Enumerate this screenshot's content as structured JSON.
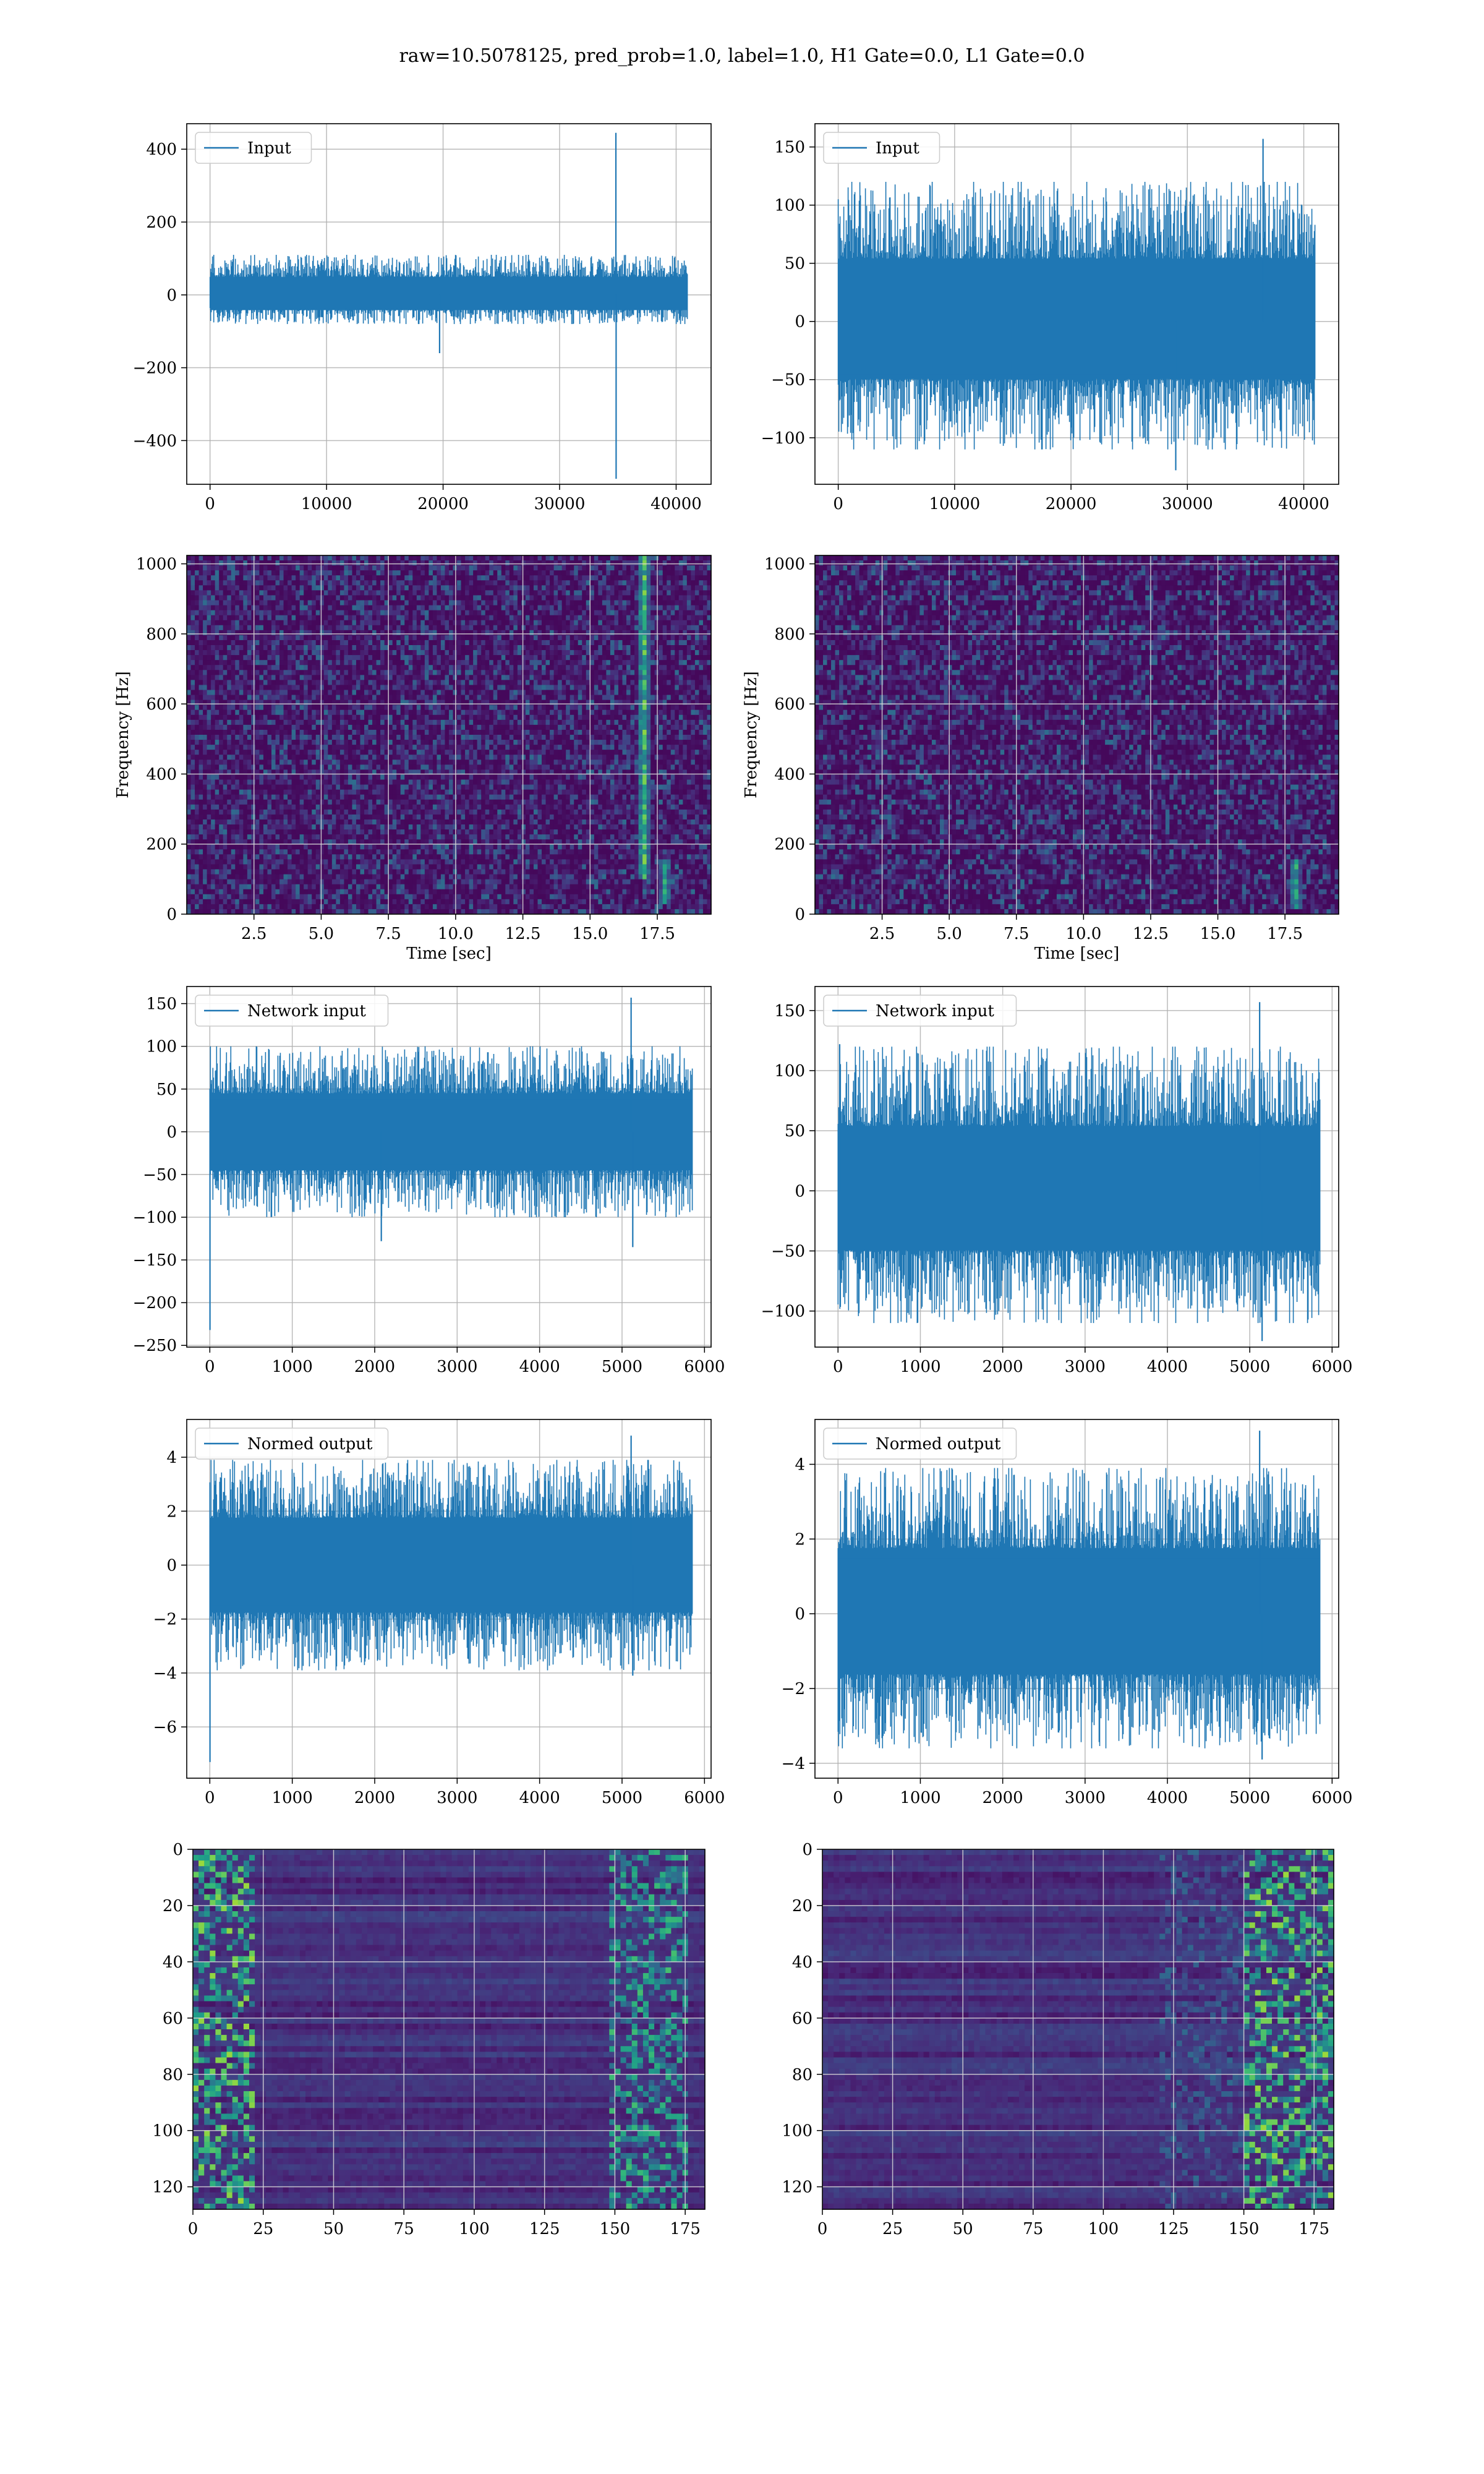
{
  "figure_title": "raw=10.5078125, pred_prob=1.0, label=1.0, H1 Gate=0.0, L1 Gate=0.0",
  "colors": {
    "line": "#1f77b4",
    "grid": "#b0b0b0",
    "viridis_low": "#440154",
    "viridis_high": "#fde725"
  },
  "chart_data": [
    {
      "id": "row1-left",
      "type": "line",
      "legend": "Input",
      "legend_loc": "upper left",
      "xlim": [
        -2000,
        43000
      ],
      "ylim": [
        -520,
        470
      ],
      "xticks": [
        0,
        10000,
        20000,
        30000,
        40000
      ],
      "xtick_labels": [
        "0",
        "10000",
        "20000",
        "30000",
        "40000"
      ],
      "yticks": [
        -400,
        -200,
        0,
        200,
        400
      ],
      "ytick_labels": [
        "−400",
        "−200",
        "0",
        "200",
        "400"
      ],
      "grid": true,
      "n_points": 40960,
      "signal": {
        "x_max": 40960,
        "noise_min": -80,
        "noise_max": 110,
        "spikes": [
          {
            "x": 34830,
            "value": 445
          },
          {
            "x": 34850,
            "value": -505
          },
          {
            "x": 19700,
            "value": -160
          }
        ]
      }
    },
    {
      "id": "row1-right",
      "type": "line",
      "legend": "Input",
      "legend_loc": "upper left",
      "xlim": [
        -2000,
        43000
      ],
      "ylim": [
        -140,
        170
      ],
      "xticks": [
        0,
        10000,
        20000,
        30000,
        40000
      ],
      "xtick_labels": [
        "0",
        "10000",
        "20000",
        "30000",
        "40000"
      ],
      "yticks": [
        -100,
        -50,
        0,
        50,
        100,
        150
      ],
      "ytick_labels": [
        "−100",
        "−50",
        "0",
        "50",
        "100",
        "150"
      ],
      "grid": true,
      "n_points": 40960,
      "signal": {
        "x_max": 40960,
        "noise_min": -110,
        "noise_max": 120,
        "spikes": [
          {
            "x": 36500,
            "value": 157
          },
          {
            "x": 29000,
            "value": -128
          }
        ]
      }
    },
    {
      "id": "row2-left",
      "type": "heatmap",
      "subtype": "spectrogram",
      "xlabel": "Time [sec]",
      "ylabel": "Frequency [Hz]",
      "xlim": [
        0,
        19.5
      ],
      "ylim": [
        0,
        1024
      ],
      "xticks": [
        2.5,
        5,
        7.5,
        10,
        12.5,
        15,
        17.5
      ],
      "xtick_labels": [
        "2.5",
        "5.0",
        "7.5",
        "10.0",
        "12.5",
        "15.0",
        "17.5"
      ],
      "yticks": [
        0,
        200,
        400,
        600,
        800,
        1000
      ],
      "ytick_labels": [
        "0",
        "200",
        "400",
        "600",
        "800",
        "1000"
      ],
      "grid": true,
      "colormap": "viridis",
      "features": [
        {
          "time": 17.0,
          "fmin": 100,
          "fmax": 1024,
          "strength": 0.9
        },
        {
          "time": 17.8,
          "fmin": 30,
          "fmax": 160,
          "strength": 0.75
        }
      ]
    },
    {
      "id": "row2-right",
      "type": "heatmap",
      "subtype": "spectrogram",
      "xlabel": "Time [sec]",
      "ylabel": "Frequency [Hz]",
      "xlim": [
        0,
        19.5
      ],
      "ylim": [
        0,
        1024
      ],
      "xticks": [
        2.5,
        5,
        7.5,
        10,
        12.5,
        15,
        17.5
      ],
      "xtick_labels": [
        "2.5",
        "5.0",
        "7.5",
        "10.0",
        "12.5",
        "15.0",
        "17.5"
      ],
      "yticks": [
        0,
        200,
        400,
        600,
        800,
        1000
      ],
      "ytick_labels": [
        "0",
        "200",
        "400",
        "600",
        "800",
        "1000"
      ],
      "grid": true,
      "colormap": "viridis",
      "features": [
        {
          "time": 17.9,
          "fmin": 20,
          "fmax": 160,
          "strength": 0.8
        }
      ]
    },
    {
      "id": "row3-left",
      "type": "line",
      "legend": "Network input",
      "legend_loc": "upper left",
      "xlim": [
        -280,
        6080
      ],
      "ylim": [
        -252,
        170
      ],
      "xticks": [
        0,
        1000,
        2000,
        3000,
        4000,
        5000,
        6000
      ],
      "xtick_labels": [
        "0",
        "1000",
        "2000",
        "3000",
        "4000",
        "5000",
        "6000"
      ],
      "yticks": [
        -250,
        -200,
        -150,
        -100,
        -50,
        0,
        50,
        100,
        150
      ],
      "ytick_labels": [
        "−250",
        "−200",
        "−150",
        "−100",
        "−50",
        "0",
        "50",
        "100",
        "150"
      ],
      "grid": true,
      "n_points": 5852,
      "signal": {
        "x_max": 5852,
        "noise_min": -100,
        "noise_max": 100,
        "spikes": [
          {
            "x": 2,
            "value": -232
          },
          {
            "x": 5110,
            "value": 157
          },
          {
            "x": 5130,
            "value": -135
          },
          {
            "x": 2080,
            "value": -128
          }
        ]
      }
    },
    {
      "id": "row3-right",
      "type": "line",
      "legend": "Network input",
      "legend_loc": "upper left",
      "xlim": [
        -280,
        6080
      ],
      "ylim": [
        -130,
        170
      ],
      "xticks": [
        0,
        1000,
        2000,
        3000,
        4000,
        5000,
        6000
      ],
      "xtick_labels": [
        "0",
        "1000",
        "2000",
        "3000",
        "4000",
        "5000",
        "6000"
      ],
      "yticks": [
        -100,
        -50,
        0,
        50,
        100,
        150
      ],
      "ytick_labels": [
        "−100",
        "−50",
        "0",
        "50",
        "100",
        "150"
      ],
      "grid": true,
      "n_points": 5852,
      "signal": {
        "x_max": 5852,
        "noise_min": -110,
        "noise_max": 120,
        "spikes": [
          {
            "x": 5120,
            "value": 157
          },
          {
            "x": 5150,
            "value": -125
          },
          {
            "x": 20,
            "value": 122
          }
        ]
      }
    },
    {
      "id": "row4-left",
      "type": "line",
      "legend": "Normed output",
      "legend_loc": "upper left",
      "xlim": [
        -280,
        6080
      ],
      "ylim": [
        -7.9,
        5.4
      ],
      "xticks": [
        0,
        1000,
        2000,
        3000,
        4000,
        5000,
        6000
      ],
      "xtick_labels": [
        "0",
        "1000",
        "2000",
        "3000",
        "4000",
        "5000",
        "6000"
      ],
      "yticks": [
        -6,
        -4,
        -2,
        0,
        2,
        4
      ],
      "ytick_labels": [
        "−6",
        "−4",
        "−2",
        "0",
        "2",
        "4"
      ],
      "grid": true,
      "n_points": 5852,
      "signal": {
        "x_max": 5852,
        "noise_min": -3.9,
        "noise_max": 3.9,
        "spikes": [
          {
            "x": 2,
            "value": -7.3
          },
          {
            "x": 5110,
            "value": 4.8
          },
          {
            "x": 5130,
            "value": -4.1
          }
        ]
      }
    },
    {
      "id": "row4-right",
      "type": "line",
      "legend": "Normed output",
      "legend_loc": "upper left",
      "xlim": [
        -280,
        6080
      ],
      "ylim": [
        -4.4,
        5.2
      ],
      "xticks": [
        0,
        1000,
        2000,
        3000,
        4000,
        5000,
        6000
      ],
      "xtick_labels": [
        "0",
        "1000",
        "2000",
        "3000",
        "4000",
        "5000",
        "6000"
      ],
      "yticks": [
        -4,
        -2,
        0,
        2,
        4
      ],
      "ytick_labels": [
        "−4",
        "−2",
        "0",
        "2",
        "4"
      ],
      "grid": true,
      "n_points": 5852,
      "signal": {
        "x_max": 5852,
        "noise_min": -3.6,
        "noise_max": 3.9,
        "spikes": [
          {
            "x": 5120,
            "value": 4.9
          },
          {
            "x": 5150,
            "value": -3.9
          }
        ]
      }
    },
    {
      "id": "row5-left",
      "type": "heatmap",
      "subtype": "feature-map",
      "xlim": [
        0,
        182
      ],
      "ylim": [
        128,
        0
      ],
      "xticks": [
        0,
        25,
        50,
        75,
        100,
        125,
        150,
        175
      ],
      "xtick_labels": [
        "0",
        "25",
        "50",
        "75",
        "100",
        "125",
        "150",
        "175"
      ],
      "yticks": [
        0,
        20,
        40,
        60,
        80,
        100,
        120
      ],
      "ytick_labels": [
        "0",
        "20",
        "40",
        "60",
        "80",
        "100",
        "120"
      ],
      "grid": true,
      "colormap": "viridis",
      "rows": 128,
      "cols": 182,
      "features": [
        {
          "cmin": 0,
          "cmax": 22,
          "strength": 0.85
        },
        {
          "cmin": 148,
          "cmax": 176,
          "strength": 0.7
        }
      ]
    },
    {
      "id": "row5-right",
      "type": "heatmap",
      "subtype": "feature-map",
      "xlim": [
        0,
        182
      ],
      "ylim": [
        128,
        0
      ],
      "xticks": [
        0,
        25,
        50,
        75,
        100,
        125,
        150,
        175
      ],
      "xtick_labels": [
        "0",
        "25",
        "50",
        "75",
        "100",
        "125",
        "150",
        "175"
      ],
      "yticks": [
        0,
        20,
        40,
        60,
        80,
        100,
        120
      ],
      "ytick_labels": [
        "0",
        "20",
        "40",
        "60",
        "80",
        "100",
        "120"
      ],
      "grid": true,
      "colormap": "viridis",
      "rows": 128,
      "cols": 182,
      "features": [
        {
          "cmin": 150,
          "cmax": 182,
          "strength": 0.85
        },
        {
          "cmin": 120,
          "cmax": 150,
          "strength": 0.35
        }
      ]
    }
  ]
}
